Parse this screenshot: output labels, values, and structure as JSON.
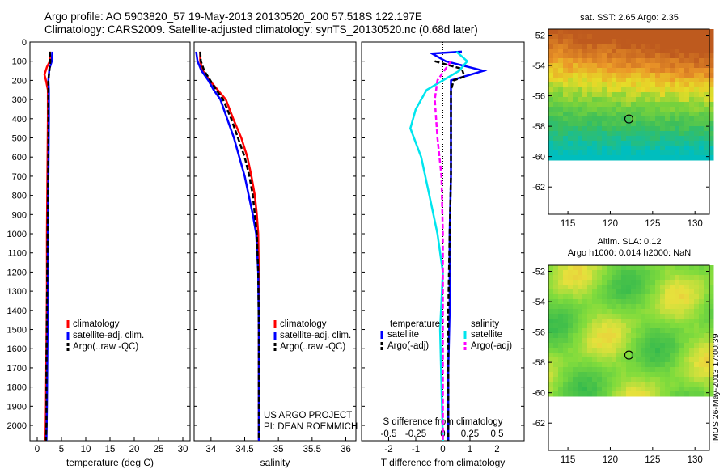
{
  "header": {
    "title_line1": "Argo profile: AO 5903820_57 19-May-2013 20130520_200 57.518S 122.197E",
    "title_line2": "Climatology: CARS2009. Satellite-adjusted climatology: synTS_20130520.nc (0.68d later)"
  },
  "colors": {
    "climatology": "#ff0000",
    "satellite": "#0000ff",
    "argo": "#000000",
    "sal_satellite": "#00e5ee",
    "sal_argo": "#ff00ff"
  },
  "depth_axis": {
    "ticks": [
      "0",
      "100",
      "200",
      "300",
      "400",
      "500",
      "600",
      "700",
      "800",
      "900",
      "1000",
      "1100",
      "1200",
      "1300",
      "1400",
      "1500",
      "1600",
      "1700",
      "1800",
      "1900",
      "2000"
    ],
    "range": [
      0,
      2080
    ]
  },
  "chart_data": [
    {
      "type": "line",
      "id": "temperature",
      "xlabel": "temperature (deg C)",
      "xlim": [
        -1.5,
        31.5
      ],
      "xticks": [
        "0",
        "5",
        "10",
        "15",
        "20",
        "25",
        "30"
      ],
      "xtick_values": [
        0,
        5,
        10,
        15,
        20,
        25,
        30
      ],
      "legend": [
        "climatology",
        "satellite-adj. clim.",
        "Argo(..raw -QC)"
      ],
      "series": [
        {
          "name": "climatology",
          "color": "#ff0000",
          "points": [
            [
              2.6,
              50
            ],
            [
              2.6,
              100
            ],
            [
              2.0,
              130
            ],
            [
              1.5,
              170
            ],
            [
              1.8,
              200
            ],
            [
              2.2,
              250
            ],
            [
              2.2,
              400
            ],
            [
              2.1,
              700
            ],
            [
              2.0,
              1000
            ],
            [
              2.0,
              1300
            ],
            [
              1.9,
              1600
            ],
            [
              1.8,
              1900
            ],
            [
              1.7,
              2080
            ]
          ]
        },
        {
          "name": "satellite-adj. clim.",
          "color": "#0000ff",
          "points": [
            [
              3.1,
              50
            ],
            [
              3.0,
              100
            ],
            [
              2.5,
              140
            ],
            [
              2.3,
              200
            ],
            [
              2.4,
              250
            ],
            [
              2.4,
              400
            ],
            [
              2.3,
              700
            ],
            [
              2.2,
              1000
            ],
            [
              2.2,
              1300
            ],
            [
              2.1,
              1600
            ],
            [
              2.0,
              1900
            ],
            [
              1.9,
              2080
            ]
          ]
        },
        {
          "name": "Argo(..raw -QC)",
          "color": "#000000",
          "dashed": true,
          "points": [
            [
              2.6,
              50
            ],
            [
              2.7,
              100
            ],
            [
              2.5,
              150
            ],
            [
              2.3,
              200
            ],
            [
              2.3,
              300
            ],
            [
              2.3,
              500
            ],
            [
              2.2,
              800
            ],
            [
              2.1,
              1100
            ],
            [
              2.0,
              1400
            ],
            [
              1.9,
              1700
            ],
            [
              1.9,
              2000
            ],
            [
              1.8,
              2080
            ]
          ]
        }
      ]
    },
    {
      "type": "line",
      "id": "salinity",
      "xlabel": "salinity",
      "xlim": [
        33.75,
        36.15
      ],
      "xticks": [
        "34",
        "34.5",
        "35",
        "35.5",
        "36"
      ],
      "xtick_values": [
        34,
        34.5,
        35,
        35.5,
        36
      ],
      "legend": [
        "climatology",
        "satellite-adj. clim.",
        "Argo(..raw -QC)"
      ],
      "annotation": [
        "US ARGO PROJECT",
        "PI: DEAN ROEMMICH"
      ],
      "series": [
        {
          "name": "climatology",
          "color": "#ff0000",
          "points": [
            [
              33.84,
              50
            ],
            [
              33.84,
              100
            ],
            [
              33.88,
              150
            ],
            [
              33.98,
              200
            ],
            [
              34.1,
              250
            ],
            [
              34.22,
              300
            ],
            [
              34.33,
              400
            ],
            [
              34.45,
              500
            ],
            [
              34.54,
              600
            ],
            [
              34.6,
              700
            ],
            [
              34.65,
              800
            ],
            [
              34.68,
              900
            ],
            [
              34.7,
              1000
            ],
            [
              34.71,
              1200
            ],
            [
              34.71,
              1500
            ],
            [
              34.71,
              1800
            ],
            [
              34.71,
              2080
            ]
          ]
        },
        {
          "name": "satellite-adj. clim.",
          "color": "#0000ff",
          "points": [
            [
              33.78,
              50
            ],
            [
              33.8,
              100
            ],
            [
              33.86,
              150
            ],
            [
              33.96,
              200
            ],
            [
              34.04,
              250
            ],
            [
              34.14,
              300
            ],
            [
              34.24,
              400
            ],
            [
              34.34,
              500
            ],
            [
              34.42,
              600
            ],
            [
              34.5,
              700
            ],
            [
              34.56,
              800
            ],
            [
              34.62,
              900
            ],
            [
              34.67,
              1000
            ],
            [
              34.7,
              1200
            ],
            [
              34.71,
              1500
            ],
            [
              34.71,
              1800
            ],
            [
              34.71,
              2080
            ]
          ]
        },
        {
          "name": "Argo(..raw -QC)",
          "color": "#000000",
          "dashed": true,
          "points": [
            [
              33.84,
              50
            ],
            [
              33.85,
              100
            ],
            [
              33.9,
              150
            ],
            [
              33.99,
              200
            ],
            [
              34.08,
              250
            ],
            [
              34.18,
              300
            ],
            [
              34.3,
              400
            ],
            [
              34.4,
              500
            ],
            [
              34.5,
              600
            ],
            [
              34.57,
              700
            ],
            [
              34.62,
              800
            ],
            [
              34.65,
              900
            ],
            [
              34.68,
              1000
            ],
            [
              34.7,
              1200
            ],
            [
              34.71,
              1500
            ],
            [
              34.71,
              1800
            ],
            [
              34.71,
              2080
            ]
          ]
        }
      ]
    },
    {
      "type": "line",
      "id": "difference",
      "xlabel": "T difference from climatology",
      "xlabel_top": "S difference from climatology",
      "xlim": [
        -3.0,
        3.0
      ],
      "xticks": [
        "-2",
        "-1",
        "0",
        "1",
        "2"
      ],
      "xtick_values": [
        -2,
        -1,
        0,
        1,
        2
      ],
      "sticks": [
        "-0.5",
        "-0.25",
        "0",
        "0.25",
        "0.5"
      ],
      "stick_values": [
        -2,
        -1,
        0,
        1,
        2
      ],
      "legend_temperature_title": "temperature",
      "legend_salinity_title": "salinity",
      "legend": [
        "satellite",
        "Argo(-adj)",
        "satellite",
        "Argo(-adj)"
      ],
      "series": [
        {
          "name": "satellite",
          "color": "#0000ff",
          "points": [
            [
              0.7,
              50
            ],
            [
              -0.4,
              60
            ],
            [
              0.1,
              100
            ],
            [
              1.5,
              150
            ],
            [
              0.3,
              200
            ],
            [
              0.3,
              260
            ],
            [
              0.3,
              400
            ],
            [
              0.3,
              700
            ],
            [
              0.25,
              1000
            ],
            [
              0.25,
              1400
            ],
            [
              0.2,
              1700
            ],
            [
              0.2,
              2080
            ]
          ]
        },
        {
          "name": "Argo(-adj)",
          "color": "#000000",
          "dashed": true,
          "points": [
            [
              -0.3,
              100
            ],
            [
              0.7,
              140
            ],
            [
              0.8,
              180
            ],
            [
              0.4,
              200
            ],
            [
              0.3,
              250
            ],
            [
              0.3,
              400
            ],
            [
              0.3,
              700
            ],
            [
              0.25,
              1000
            ],
            [
              0.2,
              1400
            ],
            [
              0.2,
              1700
            ],
            [
              0.2,
              2080
            ]
          ]
        },
        {
          "name": "satellite",
          "color": "#00e5ee",
          "points": [
            [
              0.5,
              50
            ],
            [
              0.9,
              100
            ],
            [
              0.6,
              150
            ],
            [
              -0.6,
              250
            ],
            [
              -1.0,
              350
            ],
            [
              -1.2,
              450
            ],
            [
              -0.8,
              600
            ],
            [
              -0.5,
              800
            ],
            [
              -0.2,
              1000
            ],
            [
              0.0,
              1200
            ],
            [
              -0.1,
              1500
            ],
            [
              -0.05,
              1800
            ],
            [
              0.0,
              2080
            ]
          ]
        },
        {
          "name": "Argo(-adj)",
          "color": "#ff00ff",
          "dashed": true,
          "points": [
            [
              0.3,
              100
            ],
            [
              -0.2,
              200
            ],
            [
              -0.3,
              300
            ],
            [
              -0.2,
              500
            ],
            [
              -0.05,
              700
            ],
            [
              0.0,
              1000
            ],
            [
              0.0,
              1500
            ],
            [
              0.0,
              2080
            ]
          ]
        }
      ]
    },
    {
      "type": "heatmap",
      "id": "sst_map",
      "title": "sat. SST: 2.65 Argo: 2.35",
      "xticks": [
        "115",
        "120",
        "125",
        "130"
      ],
      "xtick_values": [
        115,
        120,
        125,
        130
      ],
      "yticks": [
        "-52",
        "-54",
        "-56",
        "-58",
        "-60",
        "-62"
      ],
      "ytick_values": [
        -52,
        -54,
        -56,
        -58,
        -60,
        -62
      ],
      "xlim": [
        112.7,
        131.7
      ],
      "ylim": [
        -63.8,
        -51.6
      ],
      "data_ylim": [
        -60,
        -51.6
      ],
      "argo_position": [
        122.197,
        -57.518
      ]
    },
    {
      "type": "heatmap",
      "id": "sla_map",
      "title": "Altim. SLA: 0.12",
      "subtitle": "Argo h1000: 0.014 h2000: NaN",
      "xticks": [
        "115",
        "120",
        "125",
        "130"
      ],
      "xtick_values": [
        115,
        120,
        125,
        130
      ],
      "yticks": [
        "-52",
        "-54",
        "-56",
        "-58",
        "-60",
        "-62"
      ],
      "ytick_values": [
        -52,
        -54,
        -56,
        -58,
        -60,
        -62
      ],
      "xlim": [
        112.7,
        131.7
      ],
      "ylim": [
        -63.8,
        -51.6
      ],
      "data_ylim": [
        -60,
        -51.6
      ],
      "argo_position": [
        122.197,
        -57.518
      ]
    }
  ],
  "footer": {
    "stamp": "IMOS 26-May-2013 17:00:39"
  }
}
